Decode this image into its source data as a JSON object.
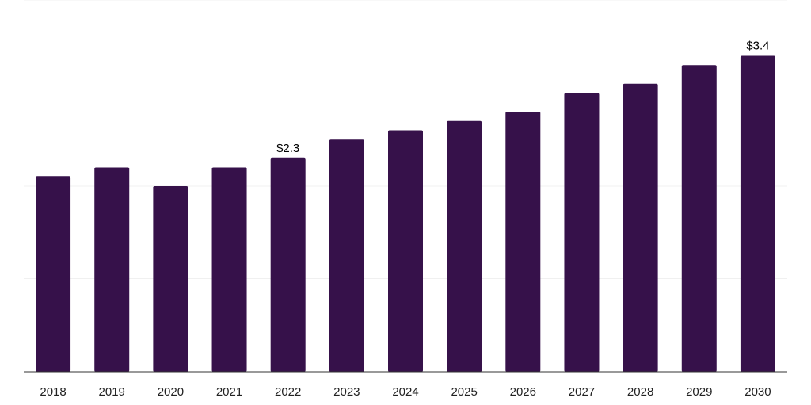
{
  "chart_data": {
    "type": "bar",
    "title": "",
    "xlabel": "",
    "ylabel": "",
    "categories": [
      "2018",
      "2019",
      "2020",
      "2021",
      "2022",
      "2023",
      "2024",
      "2025",
      "2026",
      "2027",
      "2028",
      "2029",
      "2030"
    ],
    "values": [
      2.1,
      2.2,
      2.0,
      2.2,
      2.3,
      2.5,
      2.6,
      2.7,
      2.8,
      3.0,
      3.1,
      3.3,
      3.4
    ],
    "data_labels": [
      "",
      "",
      "",
      "",
      "$2.3",
      "",
      "",
      "",
      "",
      "",
      "",
      "",
      "$3.4"
    ],
    "ylim": [
      0,
      4
    ],
    "grid": true,
    "legend": "none",
    "bar_color": "#36114a"
  }
}
